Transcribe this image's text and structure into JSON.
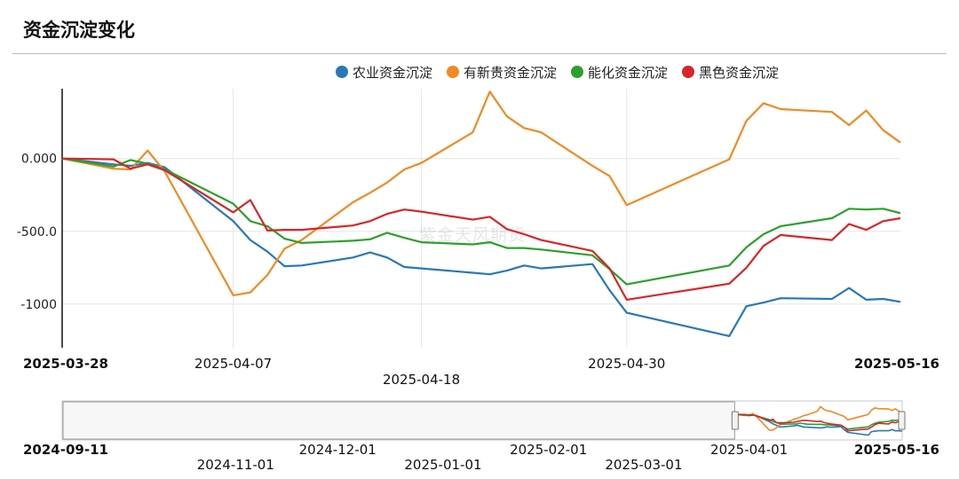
{
  "title": "资金沉淀变化",
  "watermark": "紫金天风期货",
  "chart_data": {
    "type": "line",
    "title": "资金沉淀变化",
    "legend_position": "top-right",
    "grid": true,
    "ylim": [
      -1300,
      480
    ],
    "y_ticks": [
      {
        "value": 0,
        "label": "0.000"
      },
      {
        "value": -500,
        "label": "-500.0"
      },
      {
        "value": -1000,
        "label": "-1000"
      }
    ],
    "x_range": [
      "2025-03-28",
      "2025-05-16"
    ],
    "x_ticks": [
      {
        "date": "2025-03-28",
        "label": "2025-03-28",
        "bold": true,
        "row": 0
      },
      {
        "date": "2025-04-07",
        "label": "2025-04-07",
        "bold": false,
        "row": 0
      },
      {
        "date": "2025-04-18",
        "label": "2025-04-18",
        "bold": false,
        "row": 1
      },
      {
        "date": "2025-04-30",
        "label": "2025-04-30",
        "bold": false,
        "row": 0
      },
      {
        "date": "2025-05-16",
        "label": "2025-05-16",
        "bold": true,
        "row": 0
      }
    ],
    "series": [
      {
        "name": "农业资金沉淀",
        "color": "#2878b8",
        "points": [
          [
            "2025-03-28",
            0
          ],
          [
            "2025-03-31",
            -40
          ],
          [
            "2025-04-01",
            -50
          ],
          [
            "2025-04-02",
            -30
          ],
          [
            "2025-04-03",
            -60
          ],
          [
            "2025-04-07",
            -430
          ],
          [
            "2025-04-08",
            -560
          ],
          [
            "2025-04-09",
            -640
          ],
          [
            "2025-04-10",
            -740
          ],
          [
            "2025-04-11",
            -735
          ],
          [
            "2025-04-14",
            -680
          ],
          [
            "2025-04-15",
            -645
          ],
          [
            "2025-04-16",
            -680
          ],
          [
            "2025-04-17",
            -745
          ],
          [
            "2025-04-18",
            -755
          ],
          [
            "2025-04-21",
            -785
          ],
          [
            "2025-04-22",
            -795
          ],
          [
            "2025-04-23",
            -770
          ],
          [
            "2025-04-24",
            -735
          ],
          [
            "2025-04-25",
            -755
          ],
          [
            "2025-04-28",
            -725
          ],
          [
            "2025-04-29",
            -905
          ],
          [
            "2025-04-30",
            -1060
          ],
          [
            "2025-05-06",
            -1220
          ],
          [
            "2025-05-07",
            -1015
          ],
          [
            "2025-05-08",
            -990
          ],
          [
            "2025-05-09",
            -960
          ],
          [
            "2025-05-12",
            -965
          ],
          [
            "2025-05-13",
            -890
          ],
          [
            "2025-05-14",
            -970
          ],
          [
            "2025-05-15",
            -965
          ],
          [
            "2025-05-16",
            -985
          ]
        ]
      },
      {
        "name": "有新贵资金沉淀",
        "color": "#f08a24",
        "points": [
          [
            "2025-03-28",
            0
          ],
          [
            "2025-03-31",
            -70
          ],
          [
            "2025-04-01",
            -75
          ],
          [
            "2025-04-02",
            55
          ],
          [
            "2025-04-03",
            -90
          ],
          [
            "2025-04-07",
            -940
          ],
          [
            "2025-04-08",
            -920
          ],
          [
            "2025-04-09",
            -800
          ],
          [
            "2025-04-10",
            -620
          ],
          [
            "2025-04-11",
            -560
          ],
          [
            "2025-04-14",
            -300
          ],
          [
            "2025-04-15",
            -235
          ],
          [
            "2025-04-16",
            -165
          ],
          [
            "2025-04-17",
            -75
          ],
          [
            "2025-04-18",
            -30
          ],
          [
            "2025-04-21",
            180
          ],
          [
            "2025-04-22",
            460
          ],
          [
            "2025-04-23",
            290
          ],
          [
            "2025-04-24",
            210
          ],
          [
            "2025-04-25",
            180
          ],
          [
            "2025-04-28",
            -50
          ],
          [
            "2025-04-29",
            -120
          ],
          [
            "2025-04-30",
            -320
          ],
          [
            "2025-05-06",
            -5
          ],
          [
            "2025-05-07",
            260
          ],
          [
            "2025-05-08",
            380
          ],
          [
            "2025-05-09",
            340
          ],
          [
            "2025-05-12",
            320
          ],
          [
            "2025-05-13",
            230
          ],
          [
            "2025-05-14",
            330
          ],
          [
            "2025-05-15",
            195
          ],
          [
            "2025-05-16",
            110
          ]
        ]
      },
      {
        "name": "能化资金沉淀",
        "color": "#2ca02c",
        "points": [
          [
            "2025-03-28",
            0
          ],
          [
            "2025-03-31",
            -55
          ],
          [
            "2025-04-01",
            -10
          ],
          [
            "2025-04-02",
            -35
          ],
          [
            "2025-04-03",
            -75
          ],
          [
            "2025-04-07",
            -310
          ],
          [
            "2025-04-08",
            -430
          ],
          [
            "2025-04-09",
            -465
          ],
          [
            "2025-04-10",
            -550
          ],
          [
            "2025-04-11",
            -580
          ],
          [
            "2025-04-14",
            -565
          ],
          [
            "2025-04-15",
            -555
          ],
          [
            "2025-04-16",
            -510
          ],
          [
            "2025-04-17",
            -545
          ],
          [
            "2025-04-18",
            -575
          ],
          [
            "2025-04-21",
            -590
          ],
          [
            "2025-04-22",
            -575
          ],
          [
            "2025-04-23",
            -615
          ],
          [
            "2025-04-24",
            -615
          ],
          [
            "2025-04-25",
            -625
          ],
          [
            "2025-04-28",
            -665
          ],
          [
            "2025-04-29",
            -760
          ],
          [
            "2025-04-30",
            -865
          ],
          [
            "2025-05-06",
            -735
          ],
          [
            "2025-05-07",
            -610
          ],
          [
            "2025-05-08",
            -520
          ],
          [
            "2025-05-09",
            -465
          ],
          [
            "2025-05-12",
            -410
          ],
          [
            "2025-05-13",
            -345
          ],
          [
            "2025-05-14",
            -350
          ],
          [
            "2025-05-15",
            -345
          ],
          [
            "2025-05-16",
            -375
          ]
        ]
      },
      {
        "name": "黑色资金沉淀",
        "color": "#d62728",
        "points": [
          [
            "2025-03-28",
            0
          ],
          [
            "2025-03-31",
            -5
          ],
          [
            "2025-04-01",
            -70
          ],
          [
            "2025-04-02",
            -40
          ],
          [
            "2025-04-03",
            -80
          ],
          [
            "2025-04-07",
            -370
          ],
          [
            "2025-04-08",
            -285
          ],
          [
            "2025-04-09",
            -495
          ],
          [
            "2025-04-10",
            -490
          ],
          [
            "2025-04-11",
            -490
          ],
          [
            "2025-04-14",
            -460
          ],
          [
            "2025-04-15",
            -430
          ],
          [
            "2025-04-16",
            -380
          ],
          [
            "2025-04-17",
            -350
          ],
          [
            "2025-04-18",
            -365
          ],
          [
            "2025-04-21",
            -420
          ],
          [
            "2025-04-22",
            -400
          ],
          [
            "2025-04-23",
            -485
          ],
          [
            "2025-04-24",
            -520
          ],
          [
            "2025-04-25",
            -560
          ],
          [
            "2025-04-28",
            -635
          ],
          [
            "2025-04-29",
            -755
          ],
          [
            "2025-04-30",
            -970
          ],
          [
            "2025-05-06",
            -860
          ],
          [
            "2025-05-07",
            -750
          ],
          [
            "2025-05-08",
            -600
          ],
          [
            "2025-05-09",
            -525
          ],
          [
            "2025-05-12",
            -560
          ],
          [
            "2025-05-13",
            -450
          ],
          [
            "2025-05-14",
            -490
          ],
          [
            "2025-05-15",
            -430
          ],
          [
            "2025-05-16",
            -410
          ]
        ]
      }
    ],
    "navigator": {
      "range": [
        "2024-09-11",
        "2025-05-16"
      ],
      "selected": [
        "2025-03-28",
        "2025-05-16"
      ],
      "ticks": [
        {
          "date": "2024-09-11",
          "label": "2024-09-11",
          "bold": true,
          "row": 0
        },
        {
          "date": "2024-11-01",
          "label": "2024-11-01",
          "bold": false,
          "row": 1
        },
        {
          "date": "2024-12-01",
          "label": "2024-12-01",
          "bold": false,
          "row": 0
        },
        {
          "date": "2025-01-01",
          "label": "2025-01-01",
          "bold": false,
          "row": 1
        },
        {
          "date": "2025-02-01",
          "label": "2025-02-01",
          "bold": false,
          "row": 0
        },
        {
          "date": "2025-03-01",
          "label": "2025-03-01",
          "bold": false,
          "row": 1
        },
        {
          "date": "2025-04-01",
          "label": "2025-04-01",
          "bold": false,
          "row": 0
        },
        {
          "date": "2025-05-16",
          "label": "2025-05-16",
          "bold": true,
          "row": 0
        }
      ]
    }
  }
}
